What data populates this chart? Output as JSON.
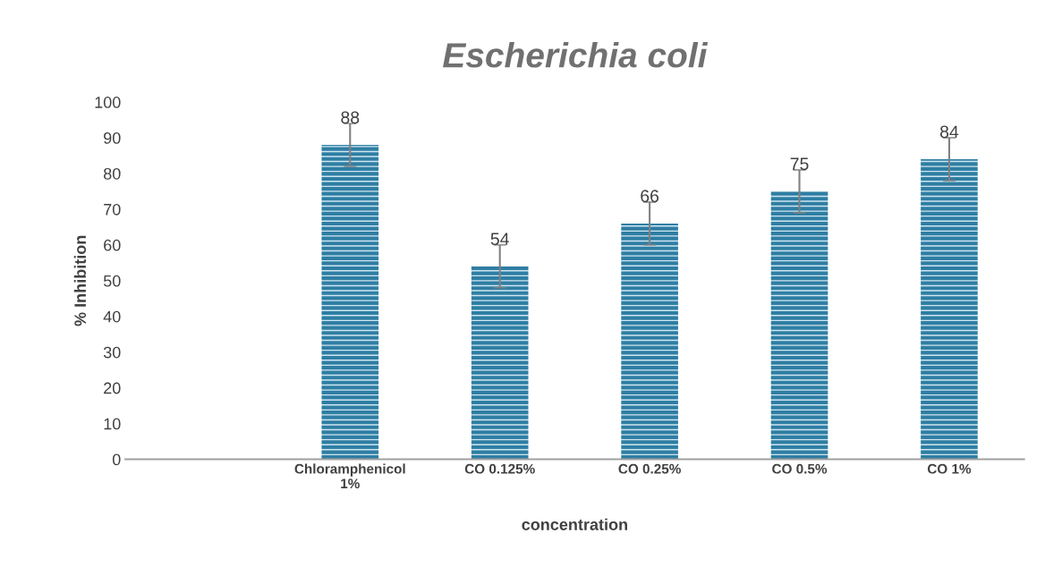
{
  "chart_data": {
    "type": "bar",
    "title": "Escherichia coli",
    "xlabel": "concentration",
    "ylabel": "% Inhibition",
    "categories": [
      null,
      "Chloramphenicol\n1%",
      "CO 0.125%",
      "CO 0.25%",
      "CO 0.5%",
      "CO 1%"
    ],
    "values": [
      null,
      88,
      54,
      66,
      75,
      84
    ],
    "errors": [
      null,
      6,
      6,
      6,
      6,
      6
    ],
    "color": "#2f7ea3",
    "ylim": [
      0,
      100
    ],
    "yticks": [
      0,
      10,
      20,
      30,
      40,
      50,
      60,
      70,
      80,
      90,
      100
    ],
    "grid": false,
    "data_labels": true
  }
}
